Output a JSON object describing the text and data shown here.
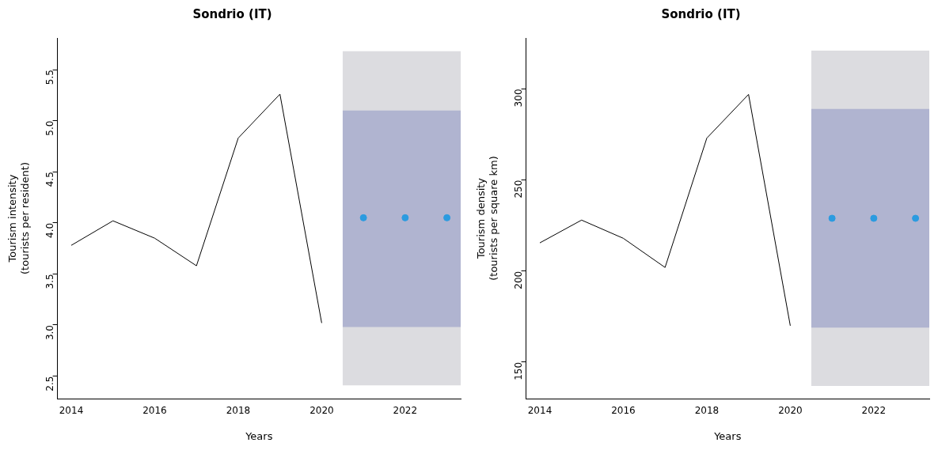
{
  "chart_data": [
    {
      "type": "line",
      "title": "Sondrio (IT)",
      "xlabel": "Years",
      "ylabel": "Tourism intensity\n(tourists per resident)",
      "xlim": [
        2013.67,
        2023.33
      ],
      "xticks": [
        2014,
        2016,
        2018,
        2020,
        2022
      ],
      "ylim": [
        2.28,
        5.81
      ],
      "yticks": [
        2.5,
        {
          "value": 3,
          "label": "3.0"
        },
        3.5,
        {
          "value": 4,
          "label": "4.0"
        },
        4.5,
        {
          "value": 5,
          "label": "5.0"
        },
        5.5
      ],
      "grid": false,
      "legend": false,
      "series": [
        {
          "type": "line",
          "color": "#dcdce0",
          "x": [
            2020.5,
            2023.33
          ],
          "values": [
            null,
            null
          ],
          "lower": [
            2.41,
            2.41
          ],
          "upper": [
            5.68,
            5.68
          ]
        },
        {
          "type": "line",
          "color": "#b0b4d0",
          "x": [
            2020.5,
            2023.33
          ],
          "values": [
            null,
            null
          ],
          "lower": [
            2.98,
            2.98
          ],
          "upper": [
            5.1,
            5.1
          ]
        },
        {
          "type": "line",
          "color": "#000000",
          "marker": "none",
          "x": [
            2014,
            2015,
            2016,
            2017,
            2018,
            2019,
            2020
          ],
          "values": [
            3.78,
            4.02,
            3.85,
            3.58,
            4.83,
            5.26,
            3.02
          ]
        },
        {
          "type": "scatter",
          "color": "#2b9be0",
          "marker": "circle",
          "x": [
            2021,
            2022,
            2023
          ],
          "values": [
            4.05,
            4.05,
            4.05
          ]
        }
      ]
    },
    {
      "type": "line",
      "title": "Sondrio (IT)",
      "xlabel": "Years",
      "ylabel": "Tourism density\n(tourists per square km)",
      "xlim": [
        2013.67,
        2023.33
      ],
      "xticks": [
        2014,
        2016,
        2018,
        2020,
        2022
      ],
      "ylim": [
        130,
        328
      ],
      "yticks": [
        150,
        200,
        250,
        300
      ],
      "grid": false,
      "legend": false,
      "series": [
        {
          "type": "line",
          "color": "#dcdce0",
          "x": [
            2020.5,
            2023.33
          ],
          "values": [
            null,
            null
          ],
          "lower": [
            137,
            137
          ],
          "upper": [
            321,
            321
          ]
        },
        {
          "type": "line",
          "color": "#b0b4d0",
          "x": [
            2020.5,
            2023.33
          ],
          "values": [
            null,
            null
          ],
          "lower": [
            169,
            169
          ],
          "upper": [
            289,
            289
          ]
        },
        {
          "type": "line",
          "color": "#000000",
          "marker": "none",
          "x": [
            2014,
            2015,
            2016,
            2017,
            2018,
            2019,
            2020
          ],
          "values": [
            215.5,
            228,
            218,
            202,
            273,
            297,
            170
          ]
        },
        {
          "type": "scatter",
          "color": "#2b9be0",
          "marker": "circle",
          "x": [
            2021,
            2022,
            2023
          ],
          "values": [
            229,
            229,
            229
          ]
        }
      ]
    }
  ]
}
